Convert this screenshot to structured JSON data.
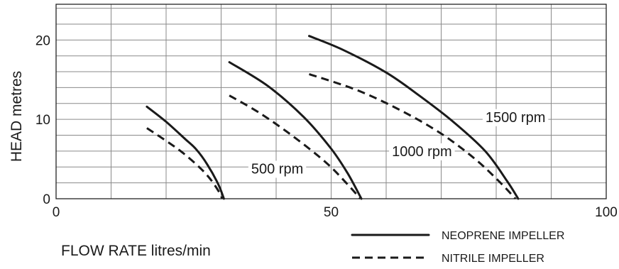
{
  "chart_data": {
    "type": "line",
    "xlabel": "FLOW RATE litres/min",
    "ylabel": "HEAD metres",
    "xlim": [
      0,
      100
    ],
    "ylim": [
      0,
      24.5
    ],
    "x_ticks": [
      "0",
      "50",
      "100"
    ],
    "y_ticks": [
      "0",
      "10",
      "20"
    ],
    "grid": true,
    "legend": [
      {
        "label": "NEOPRENE IMPELLER",
        "style": "solid"
      },
      {
        "label": "NITRILE IMPELLER",
        "style": "dashed"
      }
    ],
    "series": [
      {
        "speed": "500 rpm",
        "impeller": "NEOPRENE IMPELLER",
        "style": "solid",
        "points": [
          [
            16.5,
            11.6
          ],
          [
            20,
            9.7
          ],
          [
            23.5,
            7.5
          ],
          [
            25.5,
            6.2
          ],
          [
            27.5,
            4.3
          ],
          [
            29.5,
            1.8
          ],
          [
            30.5,
            0
          ]
        ]
      },
      {
        "speed": "500 rpm",
        "impeller": "NITRILE IMPELLER",
        "style": "dashed",
        "points": [
          [
            16.5,
            8.9
          ],
          [
            20,
            7.3
          ],
          [
            23,
            5.8
          ],
          [
            26,
            4.0
          ],
          [
            28,
            2.5
          ],
          [
            29.5,
            1.0
          ],
          [
            30.2,
            0
          ]
        ]
      },
      {
        "speed": "1000 rpm",
        "impeller": "NEOPRENE IMPELLER",
        "style": "solid",
        "points": [
          [
            31.5,
            17.2
          ],
          [
            38.5,
            14.2
          ],
          [
            45,
            10.3
          ],
          [
            50,
            6.3
          ],
          [
            53,
            3.2
          ],
          [
            55.5,
            0
          ]
        ]
      },
      {
        "speed": "1000 rpm",
        "impeller": "NITRILE IMPELLER",
        "style": "dashed",
        "points": [
          [
            31.5,
            13.0
          ],
          [
            37,
            10.8
          ],
          [
            43,
            7.9
          ],
          [
            49,
            4.6
          ],
          [
            53,
            1.8
          ],
          [
            55.3,
            0
          ]
        ]
      },
      {
        "speed": "1500 rpm",
        "impeller": "NEOPRENE IMPELLER",
        "style": "solid",
        "points": [
          [
            46,
            20.5
          ],
          [
            52,
            18.8
          ],
          [
            60,
            15.9
          ],
          [
            66,
            13.0
          ],
          [
            72,
            9.8
          ],
          [
            78,
            6.0
          ],
          [
            82,
            2.2
          ],
          [
            84,
            0
          ]
        ]
      },
      {
        "speed": "1500 rpm",
        "impeller": "NITRILE IMPELLER",
        "style": "dashed",
        "points": [
          [
            46,
            15.7
          ],
          [
            55,
            13.6
          ],
          [
            63,
            11.0
          ],
          [
            70,
            8.2
          ],
          [
            76,
            5.1
          ],
          [
            80.5,
            2.2
          ],
          [
            83.5,
            0
          ]
        ]
      }
    ],
    "annotations": [
      {
        "text": "500 rpm",
        "x": 40.2,
        "y": 3.8
      },
      {
        "text": "1000 rpm",
        "x": 66.5,
        "y": 6.0
      },
      {
        "text": "1500 rpm",
        "x": 83.5,
        "y": 10.3
      }
    ]
  }
}
